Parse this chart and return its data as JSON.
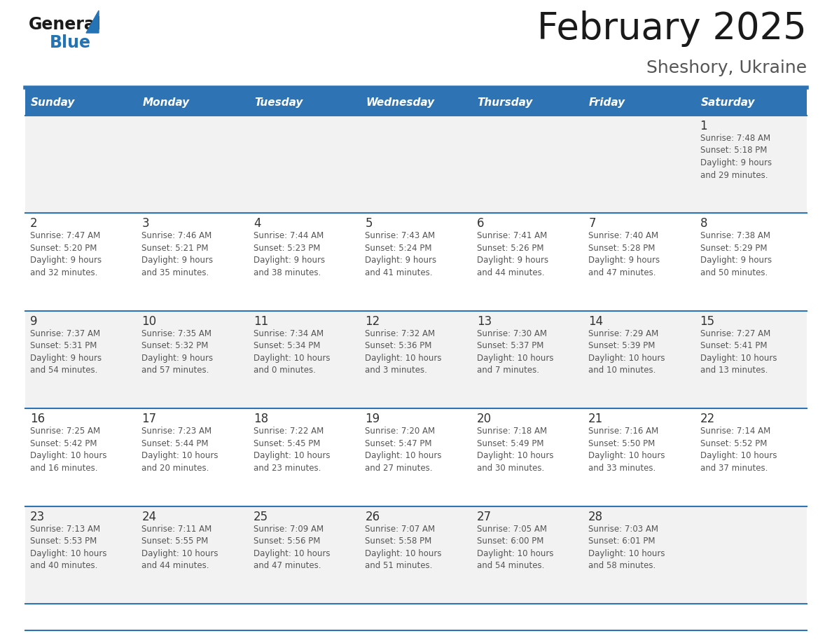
{
  "title": "February 2025",
  "subtitle": "Sheshory, Ukraine",
  "days_of_week": [
    "Sunday",
    "Monday",
    "Tuesday",
    "Wednesday",
    "Thursday",
    "Friday",
    "Saturday"
  ],
  "header_bg": "#2e74b5",
  "header_text": "#ffffff",
  "row_bg_even": "#f2f2f2",
  "row_bg_odd": "#ffffff",
  "separator_color": "#2e74b5",
  "day_number_color": "#333333",
  "text_color": "#555555",
  "calendar_data": [
    [
      null,
      null,
      null,
      null,
      null,
      null,
      {
        "day": 1,
        "sunrise": "7:48 AM",
        "sunset": "5:18 PM",
        "daylight": "9 hours and 29 minutes."
      }
    ],
    [
      {
        "day": 2,
        "sunrise": "7:47 AM",
        "sunset": "5:20 PM",
        "daylight": "9 hours and 32 minutes."
      },
      {
        "day": 3,
        "sunrise": "7:46 AM",
        "sunset": "5:21 PM",
        "daylight": "9 hours and 35 minutes."
      },
      {
        "day": 4,
        "sunrise": "7:44 AM",
        "sunset": "5:23 PM",
        "daylight": "9 hours and 38 minutes."
      },
      {
        "day": 5,
        "sunrise": "7:43 AM",
        "sunset": "5:24 PM",
        "daylight": "9 hours and 41 minutes."
      },
      {
        "day": 6,
        "sunrise": "7:41 AM",
        "sunset": "5:26 PM",
        "daylight": "9 hours and 44 minutes."
      },
      {
        "day": 7,
        "sunrise": "7:40 AM",
        "sunset": "5:28 PM",
        "daylight": "9 hours and 47 minutes."
      },
      {
        "day": 8,
        "sunrise": "7:38 AM",
        "sunset": "5:29 PM",
        "daylight": "9 hours and 50 minutes."
      }
    ],
    [
      {
        "day": 9,
        "sunrise": "7:37 AM",
        "sunset": "5:31 PM",
        "daylight": "9 hours and 54 minutes."
      },
      {
        "day": 10,
        "sunrise": "7:35 AM",
        "sunset": "5:32 PM",
        "daylight": "9 hours and 57 minutes."
      },
      {
        "day": 11,
        "sunrise": "7:34 AM",
        "sunset": "5:34 PM",
        "daylight": "10 hours and 0 minutes."
      },
      {
        "day": 12,
        "sunrise": "7:32 AM",
        "sunset": "5:36 PM",
        "daylight": "10 hours and 3 minutes."
      },
      {
        "day": 13,
        "sunrise": "7:30 AM",
        "sunset": "5:37 PM",
        "daylight": "10 hours and 7 minutes."
      },
      {
        "day": 14,
        "sunrise": "7:29 AM",
        "sunset": "5:39 PM",
        "daylight": "10 hours and 10 minutes."
      },
      {
        "day": 15,
        "sunrise": "7:27 AM",
        "sunset": "5:41 PM",
        "daylight": "10 hours and 13 minutes."
      }
    ],
    [
      {
        "day": 16,
        "sunrise": "7:25 AM",
        "sunset": "5:42 PM",
        "daylight": "10 hours and 16 minutes."
      },
      {
        "day": 17,
        "sunrise": "7:23 AM",
        "sunset": "5:44 PM",
        "daylight": "10 hours and 20 minutes."
      },
      {
        "day": 18,
        "sunrise": "7:22 AM",
        "sunset": "5:45 PM",
        "daylight": "10 hours and 23 minutes."
      },
      {
        "day": 19,
        "sunrise": "7:20 AM",
        "sunset": "5:47 PM",
        "daylight": "10 hours and 27 minutes."
      },
      {
        "day": 20,
        "sunrise": "7:18 AM",
        "sunset": "5:49 PM",
        "daylight": "10 hours and 30 minutes."
      },
      {
        "day": 21,
        "sunrise": "7:16 AM",
        "sunset": "5:50 PM",
        "daylight": "10 hours and 33 minutes."
      },
      {
        "day": 22,
        "sunrise": "7:14 AM",
        "sunset": "5:52 PM",
        "daylight": "10 hours and 37 minutes."
      }
    ],
    [
      {
        "day": 23,
        "sunrise": "7:13 AM",
        "sunset": "5:53 PM",
        "daylight": "10 hours and 40 minutes."
      },
      {
        "day": 24,
        "sunrise": "7:11 AM",
        "sunset": "5:55 PM",
        "daylight": "10 hours and 44 minutes."
      },
      {
        "day": 25,
        "sunrise": "7:09 AM",
        "sunset": "5:56 PM",
        "daylight": "10 hours and 47 minutes."
      },
      {
        "day": 26,
        "sunrise": "7:07 AM",
        "sunset": "5:58 PM",
        "daylight": "10 hours and 51 minutes."
      },
      {
        "day": 27,
        "sunrise": "7:05 AM",
        "sunset": "6:00 PM",
        "daylight": "10 hours and 54 minutes."
      },
      {
        "day": 28,
        "sunrise": "7:03 AM",
        "sunset": "6:01 PM",
        "daylight": "10 hours and 58 minutes."
      },
      null
    ]
  ],
  "logo_general_color": "#1a1a1a",
  "logo_blue_color": "#2474b5",
  "logo_triangle_color": "#2474b5",
  "fig_width": 11.88,
  "fig_height": 9.18,
  "dpi": 100
}
